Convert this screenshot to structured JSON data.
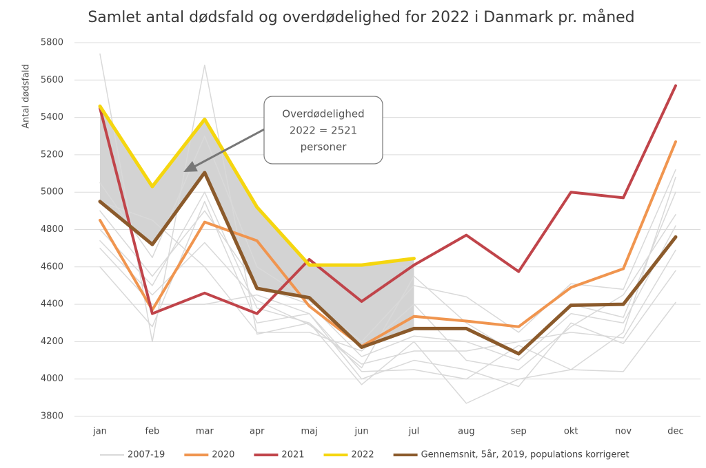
{
  "chart_data": {
    "type": "line",
    "title": "Samlet antal dødsfald og overdødelighed for 2022 i Danmark pr. måned",
    "ylabel": "Antal dødsfald",
    "categories": [
      "jan",
      "feb",
      "mar",
      "apr",
      "maj",
      "jun",
      "jul",
      "aug",
      "sep",
      "okt",
      "nov",
      "dec"
    ],
    "ylim": [
      3800,
      5800
    ],
    "yticks": [
      3800,
      4000,
      4200,
      4400,
      4600,
      4800,
      5000,
      5200,
      5400,
      5600,
      5800
    ],
    "grid": true,
    "legend": "bottom",
    "annotation": [
      "Overdødelighed",
      "2022 = 2521",
      "personer"
    ],
    "series": [
      {
        "name": "2007-19",
        "color": "#d9d9d9",
        "lines": [
          [
            5740,
            4200,
            5680,
            4240,
            4300,
            3970,
            4200,
            3870,
            4000,
            4050,
            4040,
            4410
          ],
          [
            4600,
            4280,
            4950,
            4300,
            4350,
            4000,
            4100,
            4050,
            3960,
            4300,
            4190,
            4580
          ],
          [
            4740,
            4450,
            4730,
            4420,
            4290,
            4080,
            4150,
            4150,
            4200,
            4250,
            4220,
            4690
          ],
          [
            4900,
            4550,
            4900,
            4500,
            4400,
            4120,
            4230,
            4200,
            4100,
            4350,
            4300,
            4820
          ],
          [
            5050,
            4650,
            5300,
            4600,
            4420,
            4200,
            4500,
            4440,
            4250,
            4510,
            4480,
            5120
          ],
          [
            4800,
            4500,
            5000,
            4380,
            4300,
            4060,
            4550,
            4300,
            4130,
            4400,
            4330,
            5000
          ],
          [
            4950,
            4850,
            4600,
            4250,
            4250,
            4150,
            4400,
            4100,
            4050,
            4280,
            4450,
            4880
          ],
          [
            4700,
            4400,
            4400,
            4450,
            4350,
            4040,
            4050,
            4000,
            4180,
            4050,
            4250,
            5080
          ]
        ]
      },
      {
        "name": "2020",
        "color": "#f0954f",
        "values": [
          4850,
          4370,
          4840,
          4740,
          4390,
          4175,
          4335,
          4310,
          4280,
          4490,
          4590,
          5270
        ]
      },
      {
        "name": "2021",
        "color": "#c0444a",
        "values": [
          5450,
          4350,
          4460,
          4350,
          4640,
          4415,
          4610,
          4770,
          4575,
          5000,
          4970,
          5570
        ]
      },
      {
        "name": "2022",
        "color": "#f5d60f",
        "values": [
          5460,
          5030,
          5390,
          4920,
          4610,
          4610,
          4645,
          null,
          null,
          null,
          null,
          null
        ]
      },
      {
        "name": "Gennemsnit, 5år, 2019, populations korrigeret",
        "color": "#8b5a2b",
        "values": [
          4950,
          4720,
          5105,
          4485,
          4435,
          4170,
          4270,
          4270,
          4135,
          4395,
          4400,
          4760
        ]
      }
    ]
  }
}
